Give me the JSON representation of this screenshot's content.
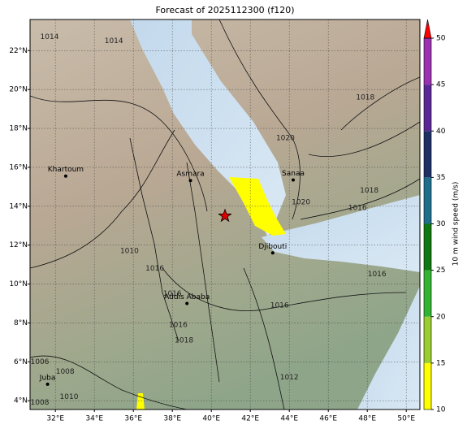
{
  "chart_data": {
    "type": "map",
    "title": "Forecast of 2025112300 (f120)",
    "xlim": [
      30.7,
      50.7
    ],
    "ylim": [
      3.55,
      23.6
    ],
    "grid": true,
    "xticks": [
      {
        "value": 32,
        "label": "32°E"
      },
      {
        "value": 34,
        "label": "34°E"
      },
      {
        "value": 36,
        "label": "36°E"
      },
      {
        "value": 38,
        "label": "38°E"
      },
      {
        "value": 40,
        "label": "40°E"
      },
      {
        "value": 42,
        "label": "42°E"
      },
      {
        "value": 44,
        "label": "44°E"
      },
      {
        "value": 46,
        "label": "46°E"
      },
      {
        "value": 48,
        "label": "48°E"
      },
      {
        "value": 50,
        "label": "50°E"
      }
    ],
    "yticks": [
      {
        "value": 4,
        "label": "4°N"
      },
      {
        "value": 6,
        "label": "6°N"
      },
      {
        "value": 8,
        "label": "8°N"
      },
      {
        "value": 10,
        "label": "10°N"
      },
      {
        "value": 12,
        "label": "12°N"
      },
      {
        "value": 14,
        "label": "14°N"
      },
      {
        "value": 16,
        "label": "16°N"
      },
      {
        "value": 18,
        "label": "18°N"
      },
      {
        "value": 20,
        "label": "20°N"
      },
      {
        "value": 22,
        "label": "22°N"
      }
    ],
    "cities": [
      {
        "name": "Khartoum",
        "lon": 32.53,
        "lat": 15.55
      },
      {
        "name": "Asmara",
        "lon": 38.93,
        "lat": 15.32
      },
      {
        "name": "Sanaa",
        "lon": 44.2,
        "lat": 15.35
      },
      {
        "name": "Djibouti",
        "lon": 43.15,
        "lat": 11.6
      },
      {
        "name": "Addis Ababa",
        "lon": 38.75,
        "lat": 9.0
      },
      {
        "name": "Juba",
        "lon": 31.6,
        "lat": 4.85
      }
    ],
    "marker": {
      "lon": 40.7,
      "lat": 13.5,
      "color": "#e00000"
    },
    "isobar_labels": [
      {
        "value": 1014,
        "lon": 31.7,
        "lat": 22.7
      },
      {
        "value": 1014,
        "lon": 35.0,
        "lat": 22.5
      },
      {
        "value": 1018,
        "lon": 47.9,
        "lat": 19.6
      },
      {
        "value": 1020,
        "lon": 43.8,
        "lat": 17.5
      },
      {
        "value": 1018,
        "lon": 48.1,
        "lat": 14.8
      },
      {
        "value": 1020,
        "lon": 44.6,
        "lat": 14.2
      },
      {
        "value": 1016,
        "lon": 47.5,
        "lat": 13.9
      },
      {
        "value": 1010,
        "lon": 35.8,
        "lat": 11.7
      },
      {
        "value": 1016,
        "lon": 48.5,
        "lat": 10.5
      },
      {
        "value": 1016,
        "lon": 37.1,
        "lat": 10.8
      },
      {
        "value": 1016,
        "lon": 38.0,
        "lat": 9.5
      },
      {
        "value": 1016,
        "lon": 43.5,
        "lat": 8.9
      },
      {
        "value": 1016,
        "lon": 38.3,
        "lat": 7.9
      },
      {
        "value": 1018,
        "lon": 38.6,
        "lat": 7.1
      },
      {
        "value": 1006,
        "lon": 31.2,
        "lat": 6.0
      },
      {
        "value": 1008,
        "lon": 32.5,
        "lat": 5.5
      },
      {
        "value": 1010,
        "lon": 32.7,
        "lat": 4.2
      },
      {
        "value": 1008,
        "lon": 31.2,
        "lat": 3.9
      },
      {
        "value": 1012,
        "lon": 44.0,
        "lat": 5.2
      }
    ],
    "colorbar": {
      "label": "10 m wind speed (m/s)",
      "lim": [
        10,
        50
      ],
      "ticks": [
        10,
        15,
        20,
        25,
        30,
        35,
        40,
        45,
        50
      ],
      "colors": [
        "#ffff00",
        "#9acd32",
        "#32b432",
        "#107810",
        "#1e6e8c",
        "#1e2f66",
        "#5a2896",
        "#9b30b0"
      ],
      "extend_color": "#ff0000"
    }
  }
}
